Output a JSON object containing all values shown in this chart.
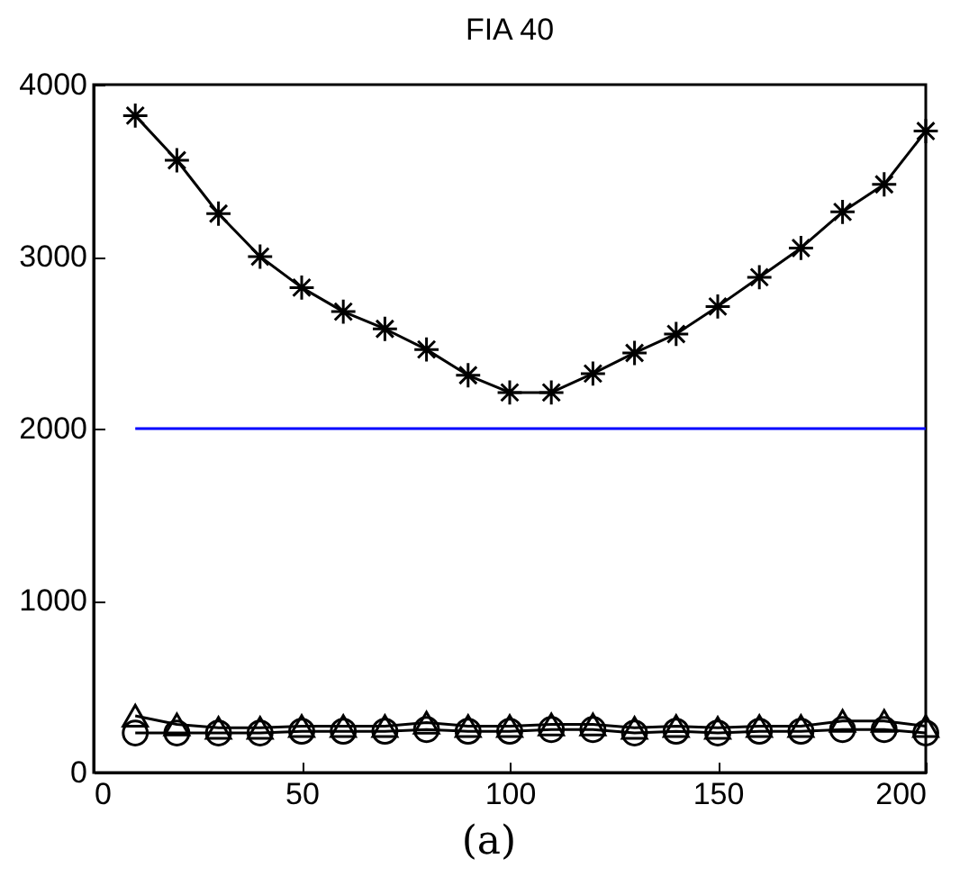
{
  "chart_data": {
    "type": "line",
    "title": "FIA 40",
    "x": [
      10,
      20,
      30,
      40,
      50,
      60,
      70,
      80,
      90,
      100,
      110,
      120,
      130,
      140,
      150,
      160,
      170,
      180,
      190,
      200
    ],
    "series": [
      {
        "color": "#000000",
        "marker": "cross",
        "values": [
          3820,
          3560,
          3250,
          3000,
          2820,
          2680,
          2580,
          2460,
          2310,
          2210,
          2210,
          2320,
          2440,
          2550,
          2710,
          2880,
          3050,
          3260,
          3420,
          3730
        ]
      },
      {
        "color": "#000000",
        "marker": "circle",
        "values": [
          230,
          230,
          230,
          230,
          240,
          240,
          240,
          250,
          240,
          240,
          250,
          250,
          230,
          240,
          230,
          240,
          240,
          250,
          250,
          230
        ]
      },
      {
        "color": "#000000",
        "marker": "triangle",
        "values": [
          330,
          280,
          260,
          260,
          270,
          270,
          270,
          290,
          270,
          270,
          280,
          280,
          260,
          270,
          260,
          270,
          270,
          300,
          300,
          270
        ]
      },
      {
        "color": "#0000ff",
        "marker": "none",
        "x": [
          10,
          200
        ],
        "values": [
          2000,
          2000
        ]
      }
    ],
    "xlim": [
      0,
      200
    ],
    "xticks": [
      0,
      50,
      100,
      150,
      200
    ],
    "ylim": [
      0,
      4000
    ],
    "yticks": [
      0,
      1000,
      2000,
      3000,
      4000
    ],
    "grid": false,
    "line_style": "solid",
    "annotations": [
      "(a)"
    ]
  }
}
